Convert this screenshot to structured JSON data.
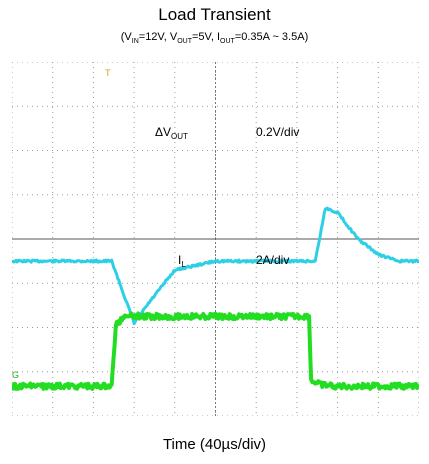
{
  "chart_data": {
    "type": "line",
    "title": "Load Transient",
    "subtitle": {
      "vin_label": "V",
      "vin_sub": "IN",
      "vin_value": "=12V, ",
      "vout_label": "V",
      "vout_sub": "OUT",
      "vout_value": "=5V, ",
      "iout_label": "I",
      "iout_sub": "OUT",
      "iout_value": "=0.35A ~ 3.5A"
    },
    "xlabel": "Time (40µs/div)",
    "x_divisions": 10,
    "y_divisions": 8,
    "grid": true,
    "background": "#ffffff",
    "grid_color": "#9a9a9a",
    "series": [
      {
        "name_main": "ΔV",
        "name_sub": "OUT",
        "scale": "0.2V/div",
        "color": "#2ccfe6",
        "x": [
          0,
          2.0,
          2.45,
          3.0,
          3.4,
          4.0,
          5.0,
          6.0,
          7.0,
          7.45,
          7.7,
          8.0,
          8.5,
          9.0,
          9.5,
          10
        ],
        "y": [
          -0.1,
          -0.1,
          -0.1,
          -0.38,
          -0.28,
          -0.14,
          -0.1,
          -0.1,
          -0.1,
          -0.1,
          0.14,
          0.12,
          0.0,
          -0.07,
          -0.1,
          -0.1
        ]
      },
      {
        "name_main": "I",
        "name_sub": "L",
        "scale": "2A/div",
        "color": "#22dd22",
        "x": [
          0,
          2.0,
          2.45,
          2.55,
          2.8,
          3.2,
          4.0,
          7.0,
          7.3,
          7.35,
          7.6,
          8.0,
          10
        ],
        "y": [
          0.35,
          0.35,
          0.35,
          3.1,
          3.6,
          3.5,
          3.5,
          3.5,
          3.5,
          0.6,
          0.4,
          0.35,
          0.35
        ]
      }
    ],
    "marker_trig": "T",
    "marker_gnd": "G"
  }
}
